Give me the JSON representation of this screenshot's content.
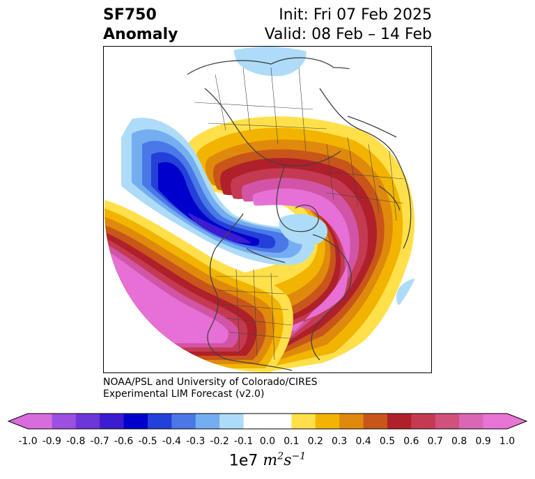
{
  "title": {
    "variable": "SF750",
    "kind": "Anomaly",
    "init": "Init: Fri 07 Feb 2025",
    "valid": "Valid: 08 Feb – 14 Feb"
  },
  "credit": {
    "line1": "NOAA/PSL and University of Colorado/CIRES",
    "line2": "Experimental LIM Forecast (v2.0)"
  },
  "colorbar": {
    "ticks": [
      "-1.0",
      "-0.9",
      "-0.8",
      "-0.7",
      "-0.6",
      "-0.5",
      "-0.4",
      "-0.3",
      "-0.2",
      "-0.1",
      "0.0",
      "0.1",
      "0.2",
      "0.3",
      "0.4",
      "0.5",
      "0.6",
      "0.7",
      "0.8",
      "0.9",
      "1.0"
    ],
    "colors": [
      "#9c4fe0",
      "#6d36d8",
      "#3b1ccf",
      "#0000cc",
      "#2340d8",
      "#4a78e8",
      "#74aef0",
      "#aedcf8",
      "#ffffff",
      "#ffe04a",
      "#f2b400",
      "#df8a0c",
      "#c8561a",
      "#b0202a",
      "#c43a52",
      "#d0527c",
      "#dc66b6"
    ],
    "under_color": "#d96cdc",
    "over_color": "#e874d6",
    "units_prefix": "1e7"
  },
  "map": {
    "projection": "polar-stereographic",
    "palette": {
      "pink": "#e670d6",
      "magenta": "#d254a6",
      "rose": "#c03c58",
      "red": "#b0202a",
      "rust": "#c8561a",
      "orange": "#df8a0c",
      "gold": "#f2b400",
      "yellow": "#ffe04a",
      "sky": "#aedcf8",
      "light_blue": "#74aef0",
      "mid_blue": "#4a78e8",
      "blue": "#2340d8",
      "deep_blue": "#0000cc",
      "indigo": "#3b1ccf"
    }
  }
}
